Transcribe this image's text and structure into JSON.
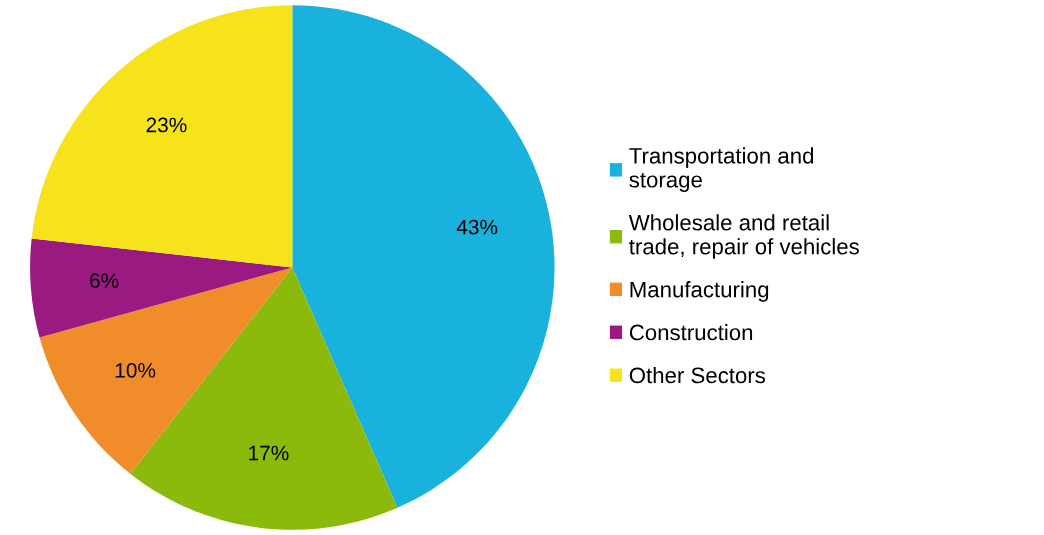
{
  "chart_data": {
    "type": "pie",
    "categories": [
      "Transportation and\nstorage",
      "Wholesale and retail\ntrade, repair of vehicles",
      "Manufacturing",
      "Construction",
      "Other Sectors"
    ],
    "values": [
      43,
      17,
      10,
      6,
      23
    ],
    "value_labels": [
      "43%",
      "17%",
      "10%",
      "6%",
      "23%"
    ],
    "colors": [
      "#18b2dc",
      "#8cba0c",
      "#f08c2a",
      "#9a1a82",
      "#f6e31c"
    ],
    "legend": "right"
  }
}
